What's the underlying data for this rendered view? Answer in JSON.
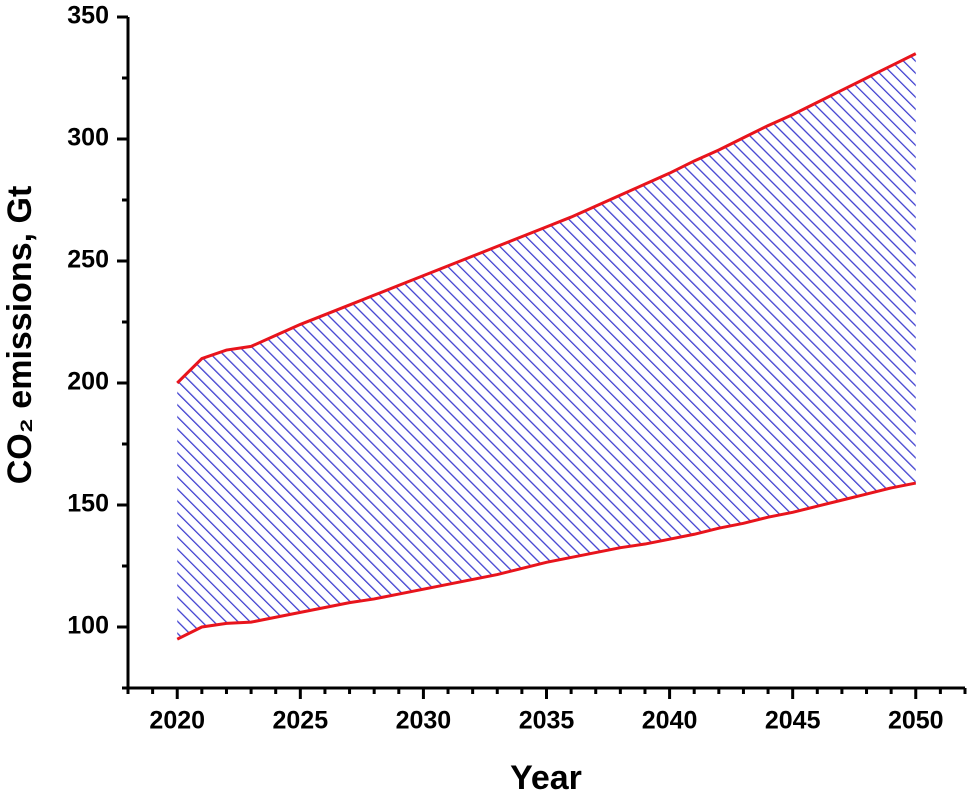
{
  "chart_data": {
    "type": "band",
    "x_label": "Year",
    "y_label": "CO₂ emissions, Gt",
    "x": [
      2020,
      2021,
      2022,
      2023,
      2024,
      2025,
      2026,
      2027,
      2028,
      2029,
      2030,
      2031,
      2032,
      2033,
      2034,
      2035,
      2036,
      2037,
      2038,
      2039,
      2040,
      2041,
      2042,
      2043,
      2044,
      2045,
      2046,
      2047,
      2048,
      2049,
      2050
    ],
    "series": [
      {
        "color": "#e8141c",
        "values": [
          200,
          210,
          213.5,
          215,
          219.5,
          224,
          228,
          232,
          236,
          240,
          244,
          248,
          252,
          256,
          260,
          264,
          268,
          272.5,
          277,
          281.5,
          286,
          291,
          295.5,
          300.5,
          305.5,
          310,
          315,
          320,
          325,
          330,
          335
        ]
      },
      {
        "color": "#e8141c",
        "values": [
          95,
          100,
          101.5,
          102,
          104,
          106,
          108,
          110,
          111.5,
          113.5,
          115.5,
          117.5,
          119.5,
          121.5,
          124,
          126.5,
          128.5,
          130.5,
          132.5,
          134,
          136,
          138,
          140.5,
          142.5,
          145,
          147,
          149.5,
          152,
          154.5,
          157,
          159
        ]
      }
    ],
    "fill_color": "#4040d0",
    "xlim": [
      2018,
      2052
    ],
    "xticks": [
      2020,
      2025,
      2030,
      2035,
      2040,
      2045,
      2050
    ],
    "xminorticks": [
      2018,
      2019,
      2021,
      2022,
      2023,
      2024,
      2026,
      2027,
      2028,
      2029,
      2031,
      2032,
      2033,
      2034,
      2036,
      2037,
      2038,
      2039,
      2041,
      2042,
      2043,
      2044,
      2046,
      2047,
      2048,
      2049,
      2051,
      2052
    ],
    "ylim": [
      75,
      350
    ],
    "yticks": [
      100,
      150,
      200,
      250,
      300,
      350
    ],
    "yminorticks": [
      75,
      125,
      175,
      225,
      275,
      325
    ]
  }
}
